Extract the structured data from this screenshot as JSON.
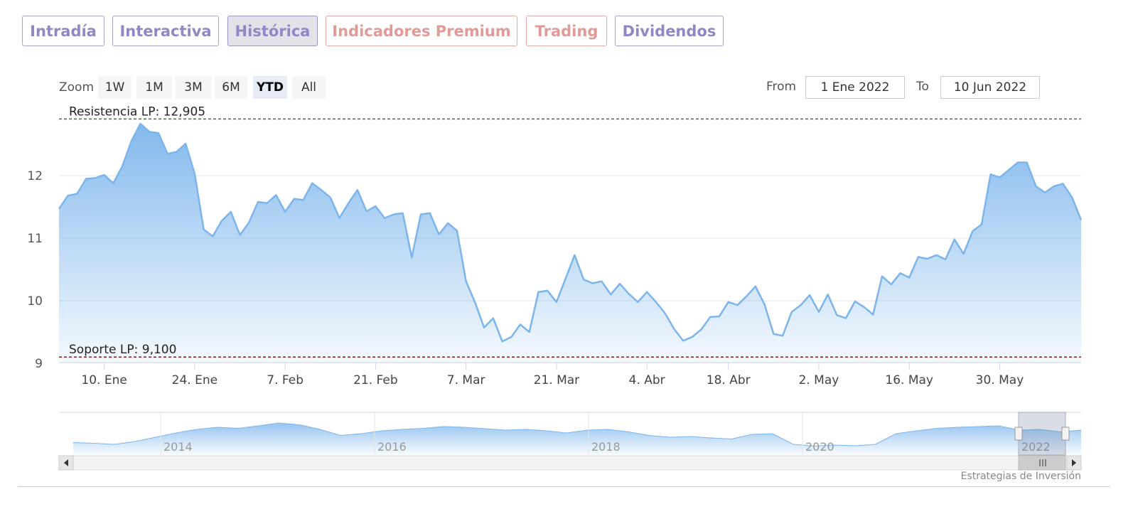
{
  "tabs": [
    {
      "label": "Intradía",
      "color": "purple",
      "active": false
    },
    {
      "label": "Interactiva",
      "color": "purple",
      "active": false
    },
    {
      "label": "Histórica",
      "color": "purple",
      "active": true
    },
    {
      "label": "Indicadores Premium",
      "color": "red",
      "active": false
    },
    {
      "label": "Trading",
      "color": "red",
      "active": false
    },
    {
      "label": "Dividendos",
      "color": "purple",
      "active": false
    }
  ],
  "zoom": {
    "label": "Zoom",
    "buttons": [
      "1W",
      "1M",
      "3M",
      "6M",
      "YTD",
      "All"
    ],
    "selected": "YTD"
  },
  "range": {
    "from_label": "From",
    "from_value": "1 Ene 2022",
    "to_label": "To",
    "to_value": "10 Jun 2022"
  },
  "credit": "Estrategias de Inversión",
  "colors": {
    "line": "#7cb5ec",
    "resistance": "#2a7a2a",
    "support": "#8b1a1a",
    "tab_purple": "#8e88c4",
    "tab_red": "#e09b98"
  },
  "chart_data": {
    "type": "area",
    "title": "",
    "xlabel": "",
    "ylabel": "",
    "ylim": [
      9,
      13
    ],
    "yticks": [
      9,
      10,
      11,
      12
    ],
    "xticks": [
      "10. Ene",
      "24. Ene",
      "7. Feb",
      "21. Feb",
      "7. Mar",
      "21. Mar",
      "4. Abr",
      "18. Abr",
      "2. May",
      "16. May",
      "30. May"
    ],
    "grid": true,
    "annotations": [
      {
        "label": "Resistencia LP: 12,905",
        "value": 12.905,
        "style": "dashed"
      },
      {
        "label": "Soporte LP: 9,100",
        "value": 9.1,
        "style": "dashed"
      }
    ],
    "series": [
      {
        "x": [
          "3 Ene",
          "4 Ene",
          "5 Ene",
          "6 Ene",
          "7 Ene",
          "10 Ene",
          "11 Ene",
          "12 Ene",
          "13 Ene",
          "14 Ene",
          "17 Ene",
          "18 Ene",
          "19 Ene",
          "20 Ene",
          "21 Ene",
          "24 Ene",
          "25 Ene",
          "26 Ene",
          "27 Ene",
          "28 Ene",
          "31 Ene",
          "1 Feb",
          "2 Feb",
          "3 Feb",
          "4 Feb",
          "7 Feb",
          "8 Feb",
          "9 Feb",
          "10 Feb",
          "11 Feb",
          "14 Feb",
          "15 Feb",
          "16 Feb",
          "17 Feb",
          "18 Feb",
          "21 Feb",
          "22 Feb",
          "23 Feb",
          "24 Feb",
          "25 Feb",
          "28 Feb",
          "1 Mar",
          "2 Mar",
          "3 Mar",
          "4 Mar",
          "7 Mar",
          "8 Mar",
          "9 Mar",
          "10 Mar",
          "11 Mar",
          "14 Mar",
          "15 Mar",
          "16 Mar",
          "17 Mar",
          "18 Mar",
          "21 Mar",
          "22 Mar",
          "23 Mar",
          "24 Mar",
          "25 Mar",
          "28 Mar",
          "29 Mar",
          "30 Mar",
          "31 Mar",
          "1 Abr",
          "4 Abr",
          "5 Abr",
          "6 Abr",
          "7 Abr",
          "8 Abr",
          "11 Abr",
          "12 Abr",
          "13 Abr",
          "14 Abr",
          "18 Abr",
          "19 Abr",
          "20 Abr",
          "21 Abr",
          "22 Abr",
          "25 Abr",
          "26 Abr",
          "27 Abr",
          "28 Abr",
          "29 Abr",
          "2 May",
          "3 May",
          "4 May",
          "5 May",
          "6 May",
          "9 May",
          "10 May",
          "11 May",
          "12 May",
          "13 May",
          "16 May",
          "17 May",
          "18 May",
          "19 May",
          "20 May",
          "23 May",
          "24 May",
          "25 May",
          "26 May",
          "27 May",
          "30 May",
          "31 May",
          "1 Jun",
          "2 Jun",
          "3 Jun",
          "6 Jun",
          "7 Jun",
          "8 Jun",
          "9 Jun",
          "10 Jun"
        ],
        "values": [
          11.47,
          11.68,
          11.71,
          11.95,
          11.96,
          12.01,
          11.88,
          12.15,
          12.55,
          12.83,
          12.7,
          12.68,
          12.35,
          12.38,
          12.51,
          12.03,
          11.14,
          11.03,
          11.28,
          11.42,
          11.05,
          11.25,
          11.58,
          11.56,
          11.69,
          11.42,
          11.63,
          11.61,
          11.88,
          11.77,
          11.65,
          11.32,
          11.56,
          11.77,
          11.43,
          11.51,
          11.32,
          11.38,
          11.4,
          10.69,
          11.38,
          11.4,
          11.06,
          11.24,
          11.12,
          10.31,
          9.97,
          9.57,
          9.72,
          9.35,
          9.42,
          9.62,
          9.5,
          10.14,
          10.16,
          9.98,
          10.35,
          10.73,
          10.34,
          10.28,
          10.31,
          10.1,
          10.27,
          10.11,
          9.98,
          10.14,
          9.98,
          9.8,
          9.55,
          9.36,
          9.42,
          9.54,
          9.74,
          9.75,
          9.98,
          9.93,
          10.07,
          10.23,
          9.94,
          9.47,
          9.44,
          9.82,
          9.93,
          10.09,
          9.82,
          10.1,
          9.77,
          9.72,
          9.99,
          9.9,
          9.78,
          10.39,
          10.26,
          10.44,
          10.37,
          10.7,
          10.67,
          10.73,
          10.66,
          10.98,
          10.75,
          11.11,
          11.22,
          12.02,
          11.97,
          12.09,
          12.21,
          12.21,
          11.83,
          11.73,
          11.83,
          11.87,
          11.65,
          11.29
        ]
      }
    ]
  },
  "navigator": {
    "labels": [
      "2014",
      "2016",
      "2018",
      "2020",
      "2022"
    ]
  }
}
